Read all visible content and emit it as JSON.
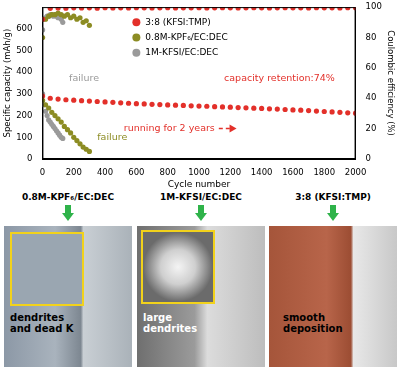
{
  "chart_data": {
    "type": "scatter",
    "x_label": "Cycle number",
    "y_label": "Specific capacity (mAh/g)",
    "y2_label": "Coulombic efficiency (%)",
    "xlim": [
      0,
      2000
    ],
    "xticks": [
      0,
      200,
      400,
      600,
      800,
      1000,
      1200,
      1400,
      1600,
      1800,
      2000
    ],
    "ylim": [
      0,
      700
    ],
    "yticks": [
      0,
      100,
      200,
      300,
      400,
      500,
      600
    ],
    "y2lim": [
      0,
      100
    ],
    "y2ticks": [
      0,
      20,
      40,
      60,
      80,
      100
    ],
    "grid": false,
    "legend": "top",
    "marker": "circle",
    "series": [
      {
        "name": "3:8 (KFSI:TMP)",
        "color": "#e3302a",
        "x": [
          1,
          50,
          100,
          150,
          200,
          250,
          300,
          350,
          400,
          450,
          500,
          550,
          600,
          650,
          700,
          750,
          800,
          850,
          900,
          950,
          1000,
          1050,
          1100,
          1150,
          1200,
          1250,
          1300,
          1350,
          1400,
          1450,
          1500,
          1550,
          1600,
          1650,
          1700,
          1750,
          1800,
          1850,
          1900,
          1950,
          2000
        ],
        "values": [
          290,
          280,
          276,
          273,
          271,
          269,
          267,
          265,
          263,
          261,
          259,
          257,
          255,
          254,
          252,
          251,
          249,
          248,
          247,
          245,
          244,
          243,
          241,
          240,
          239,
          237,
          236,
          234,
          233,
          231,
          230,
          228,
          226,
          225,
          223,
          221,
          219,
          217,
          215,
          213,
          211
        ],
        "ce_values": [
          92,
          99.2,
          99.4,
          99.3,
          99.5,
          99.4,
          99.5,
          99.3,
          99.6,
          99.4,
          99.5,
          99.4,
          99.6,
          99.5,
          99.4,
          99.5,
          99.6,
          99.4,
          99.5,
          99.5,
          99.6,
          99.4,
          99.5,
          99.6,
          99.5,
          99.4,
          99.5,
          99.6,
          99.5,
          99.4,
          99.5,
          99.6,
          99.5,
          99.5,
          99.4,
          99.6,
          99.5,
          99.5,
          99.4,
          99.6,
          99.5
        ]
      },
      {
        "name": "0.8M-KPF₆/EC:DEC",
        "color": "#8c8c23",
        "x": [
          1,
          20,
          40,
          60,
          80,
          100,
          120,
          140,
          160,
          180,
          200,
          220,
          240,
          260,
          280,
          300
        ],
        "values": [
          270,
          250,
          235,
          215,
          200,
          185,
          170,
          150,
          135,
          120,
          100,
          85,
          70,
          55,
          45,
          35
        ],
        "ce_values": [
          80,
          92,
          94,
          95,
          95,
          96,
          95,
          94,
          95,
          93,
          94,
          92,
          93,
          90,
          91,
          88
        ]
      },
      {
        "name": "1M-KFSI/EC:DEC",
        "color": "#9a9a9a",
        "x": [
          1,
          10,
          20,
          30,
          40,
          50,
          60,
          70,
          80,
          90,
          100,
          110,
          120,
          130
        ],
        "values": [
          300,
          250,
          220,
          200,
          180,
          170,
          160,
          150,
          140,
          130,
          120,
          110,
          100,
          95
        ],
        "ce_values": [
          85,
          92,
          93,
          94,
          94,
          95,
          95,
          94,
          95,
          94,
          93,
          94,
          92,
          90
        ]
      }
    ],
    "annotations": [
      {
        "text": "capacity retention:74%",
        "color": "#e3302a"
      },
      {
        "text": "running for 2 years",
        "color": "#e3302a"
      },
      {
        "text": "failure",
        "color": "#9a9a9a"
      },
      {
        "text": "failure",
        "color": "#8c8c23"
      }
    ]
  },
  "panels": [
    {
      "title": "0.8M-KPF₆/EC:DEC",
      "caption": "dendrites and dead K"
    },
    {
      "title": "1M-KFSI/EC:DEC",
      "caption": "large dendrites"
    },
    {
      "title": "3:8 (KFSI:TMP)",
      "caption": "smooth deposition"
    }
  ]
}
